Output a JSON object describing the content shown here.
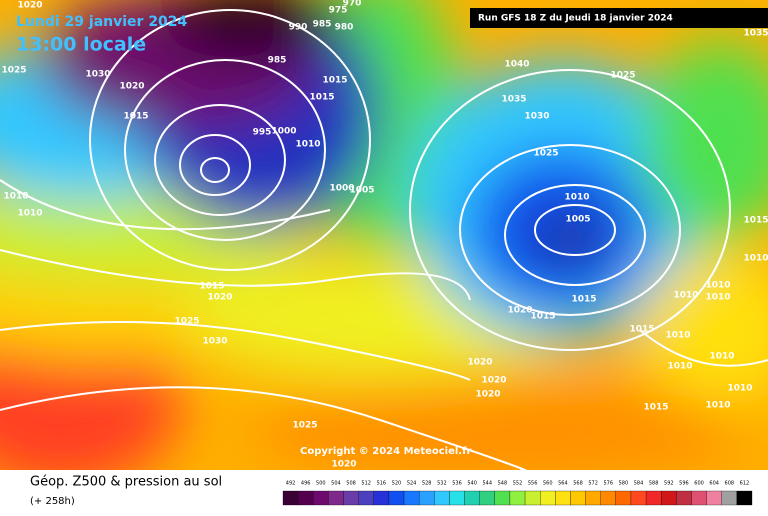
{
  "header": {
    "date": "Lundi 29 janvier 2024",
    "time": "13:00 locale",
    "run": "Run GFS 18 Z du Jeudi 18 janvier 2024"
  },
  "copyright": "Copyright © 2024 Meteociel.fr",
  "footer": {
    "title": "Géop. Z500 & pression au sol",
    "lead": "(+ 258h)"
  },
  "colorbar": {
    "labels": [
      492,
      496,
      500,
      504,
      508,
      512,
      516,
      520,
      524,
      528,
      532,
      536,
      540,
      544,
      548,
      552,
      556,
      560,
      564,
      568,
      572,
      576,
      580,
      584,
      588,
      592,
      596,
      600,
      604,
      608,
      612
    ],
    "colors": [
      "#3b0036",
      "#55004f",
      "#6e0a6e",
      "#7d2a8c",
      "#6a3ca8",
      "#4a40c0",
      "#2830d8",
      "#1050f0",
      "#1878ff",
      "#2aa0ff",
      "#30c8ff",
      "#28e0e8",
      "#20d0b0",
      "#30d080",
      "#50e050",
      "#90f040",
      "#c8f030",
      "#f0f020",
      "#ffe010",
      "#ffc800",
      "#ffa800",
      "#ff8800",
      "#ff6800",
      "#ff4820",
      "#f02828",
      "#d01818",
      "#c03040",
      "#e05070",
      "#f080a0",
      "#a0a0a0",
      "#000000"
    ]
  },
  "isobar_labels": [
    "1020",
    "975",
    "970",
    "990",
    "985",
    "980",
    "1025",
    "1030",
    "985",
    "1020",
    "1015",
    "1015",
    "1015",
    "995",
    "1000",
    "1010",
    "1005",
    "1000",
    "1010",
    "1010",
    "1015",
    "1020",
    "1025",
    "1030",
    "1025",
    "1020",
    "1040",
    "1035",
    "1030",
    "1025",
    "1025",
    "1010",
    "1005",
    "1015",
    "1020",
    "1015",
    "1015",
    "1020",
    "1020",
    "1020",
    "1015",
    "1010",
    "1010",
    "1010",
    "1010",
    "1010",
    "1010",
    "1010",
    "1010",
    "1035",
    "1015",
    "1010"
  ]
}
